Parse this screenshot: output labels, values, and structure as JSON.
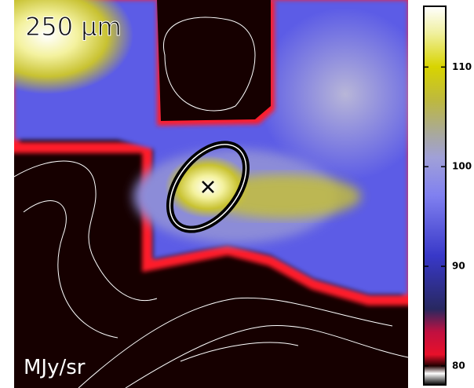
{
  "chart_data": {
    "type": "heatmap",
    "title": "250 μm",
    "colorbar_label": "MJy/sr",
    "clim": [
      78.1,
      116.1
    ],
    "cticks": [
      80,
      90,
      100,
      110
    ]
  }
}
